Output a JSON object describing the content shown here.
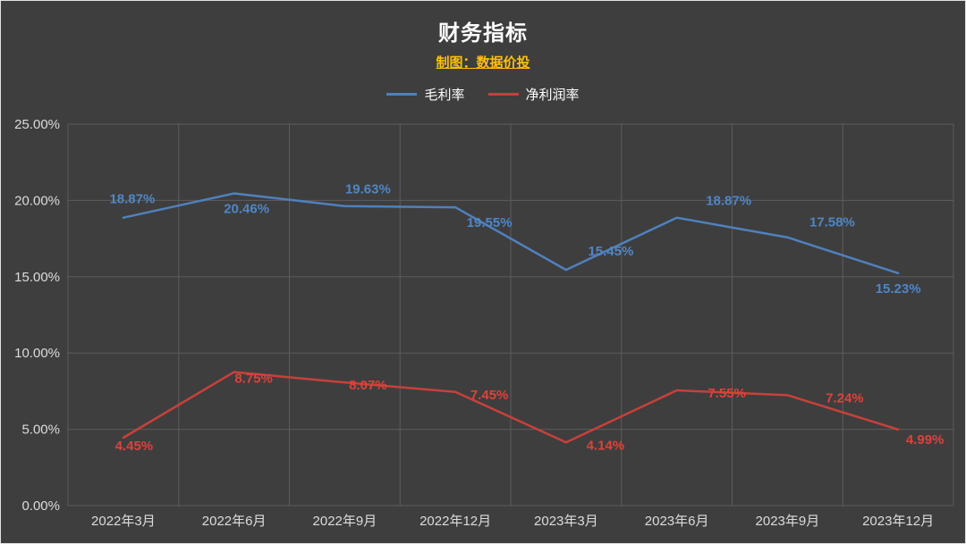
{
  "theme": {
    "background": "#3e3e3e",
    "grid": "#5c5c5c",
    "axis_text": "#dcdcdc",
    "title_color": "#ffffff",
    "subtitle_color": "#ffc000"
  },
  "chart_data": {
    "type": "line",
    "title": "财务指标",
    "subtitle": "制图：数据价投",
    "legend_position": "top",
    "grid": true,
    "ylim": [
      0,
      25
    ],
    "y_ticks": [
      "0.00%",
      "5.00%",
      "10.00%",
      "15.00%",
      "20.00%",
      "25.00%"
    ],
    "categories": [
      "2022年3月",
      "2022年6月",
      "2022年9月",
      "2022年12月",
      "2023年3月",
      "2023年6月",
      "2023年9月",
      "2023年12月"
    ],
    "series": [
      {
        "id": "gross-margin",
        "name": "毛利率",
        "color": "#4f81bd",
        "label_color": "#4f86c6",
        "values": [
          18.87,
          20.46,
          19.63,
          19.55,
          15.45,
          18.87,
          17.58,
          15.23
        ],
        "labels": [
          "18.87%",
          "20.46%",
          "19.63%",
          "19.55%",
          "15.45%",
          "18.87%",
          "17.58%",
          "15.23%"
        ],
        "label_anchor": "middle",
        "label_offsets": [
          [
            10,
            -16
          ],
          [
            14,
            22
          ],
          [
            26,
            -14
          ],
          [
            38,
            22
          ],
          [
            50,
            -16
          ],
          [
            58,
            -14
          ],
          [
            50,
            -12
          ],
          [
            0,
            22
          ]
        ]
      },
      {
        "id": "net-margin",
        "name": "净利润率",
        "color": "#c9403a",
        "label_color": "#e0413a",
        "values": [
          4.45,
          8.75,
          8.07,
          7.45,
          4.14,
          7.55,
          7.24,
          4.99
        ],
        "labels": [
          "4.45%",
          "8.75%",
          "8.07%",
          "7.45%",
          "4.14%",
          "7.55%",
          "7.24%",
          "4.99%"
        ],
        "label_anchor": "middle",
        "label_offsets": [
          [
            12,
            14
          ],
          [
            22,
            12
          ],
          [
            26,
            8
          ],
          [
            38,
            8
          ],
          [
            44,
            8
          ],
          [
            56,
            8
          ],
          [
            64,
            8
          ],
          [
            30,
            16
          ]
        ]
      }
    ]
  }
}
